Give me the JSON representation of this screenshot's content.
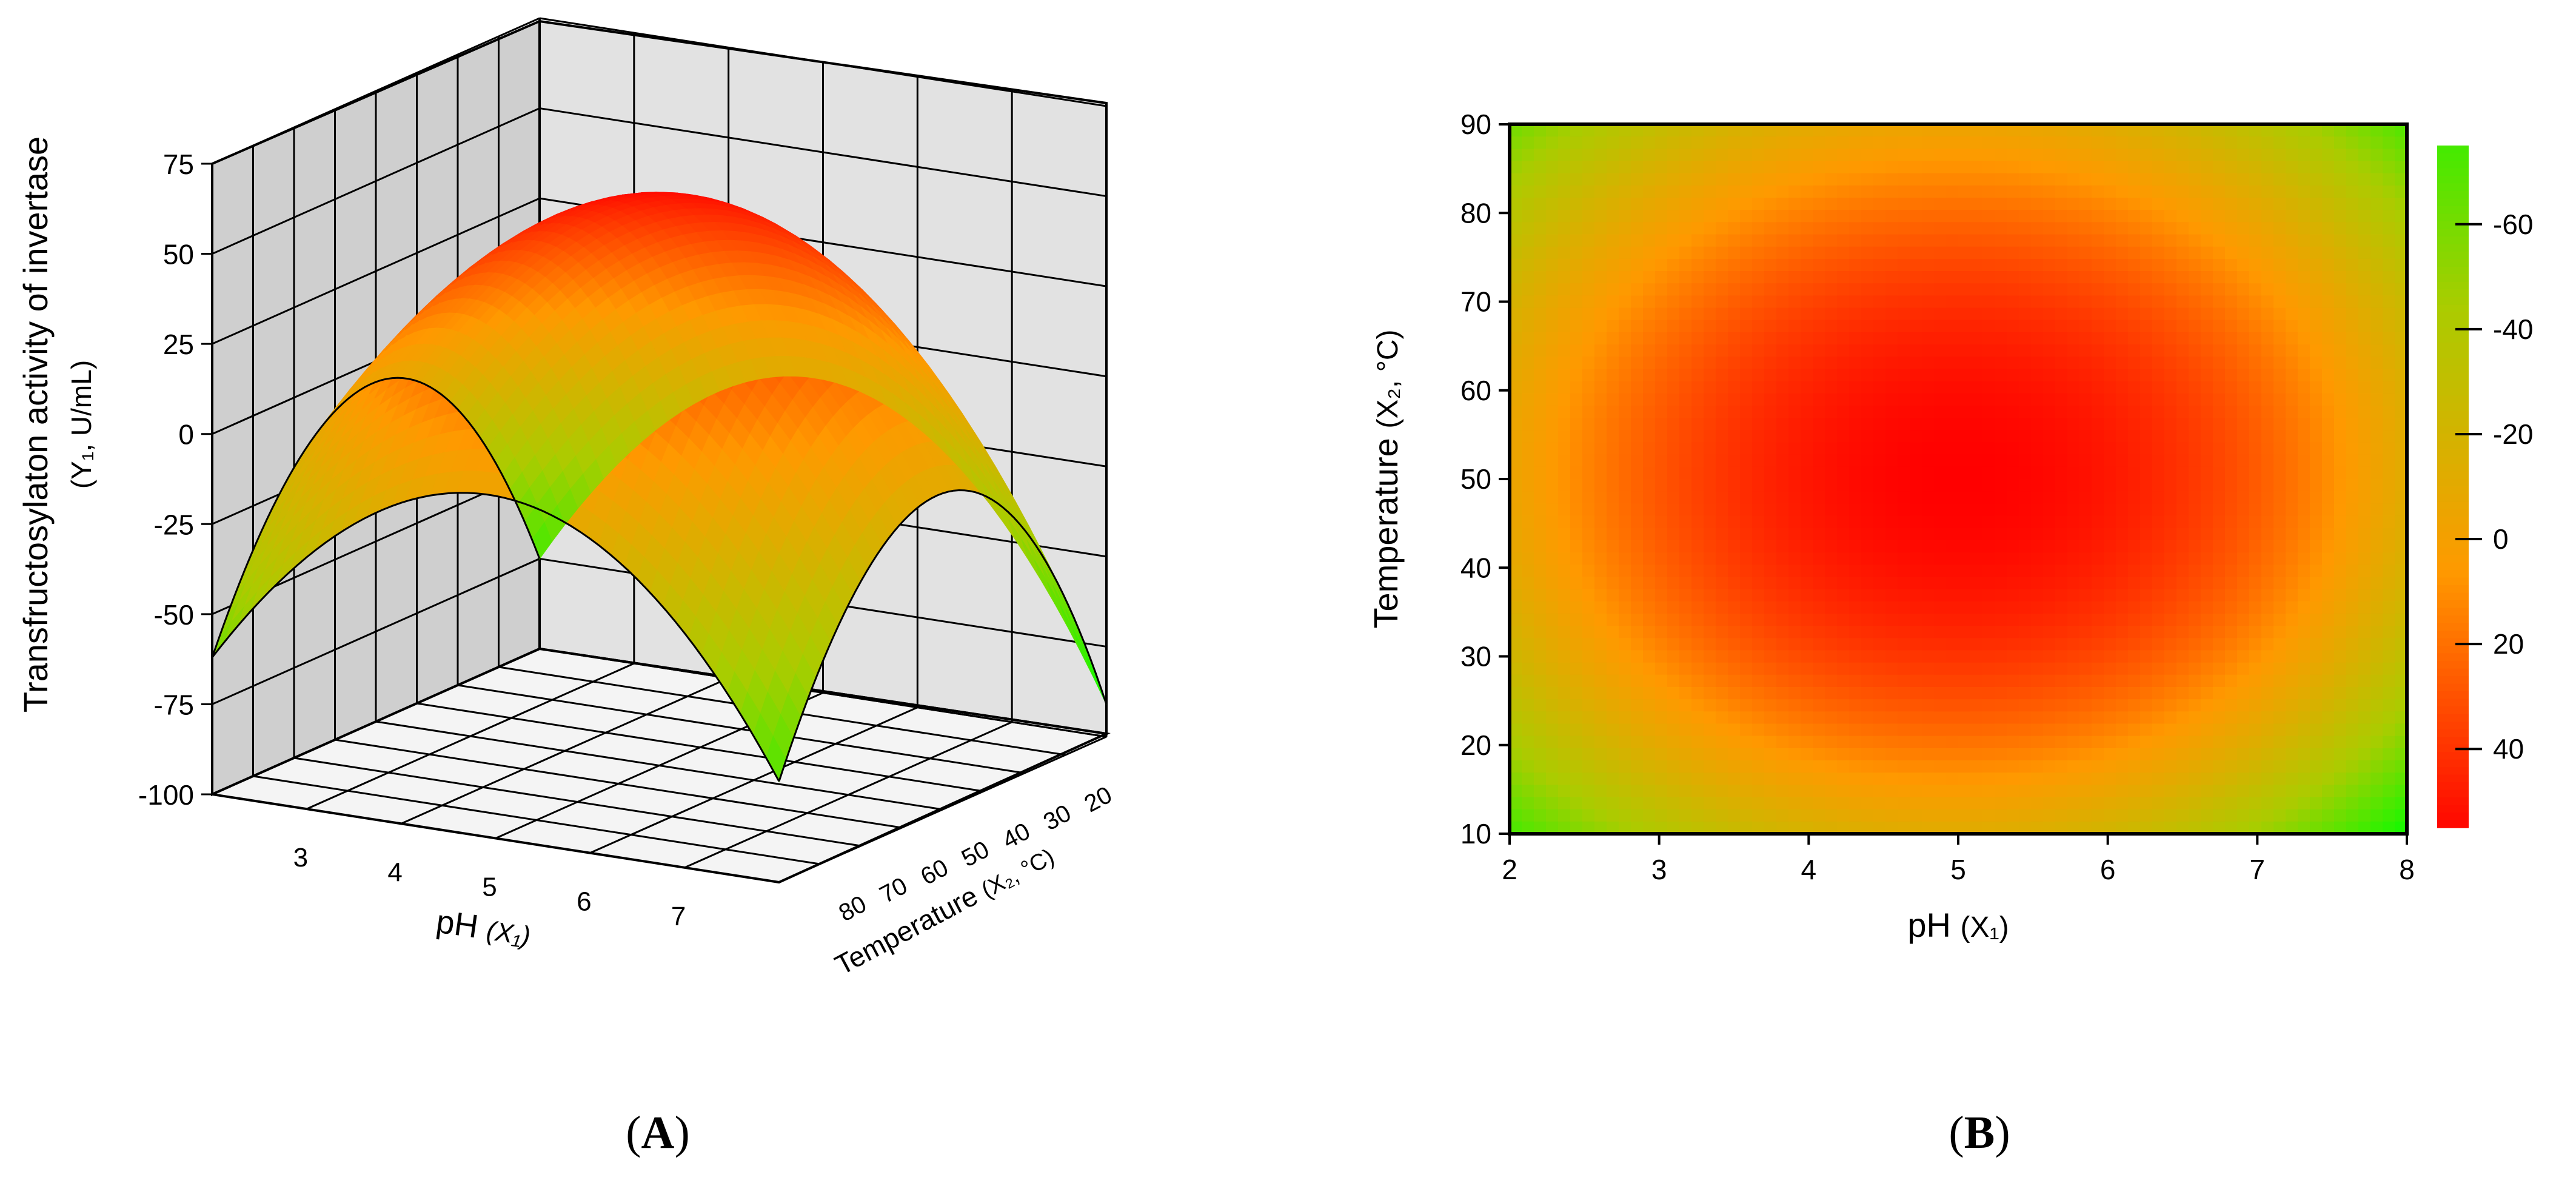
{
  "chart_data": [
    {
      "panel": "(A)",
      "panel_letter": "A",
      "type": "surface",
      "x_axis": {
        "label": "pH",
        "label_sub": "(X₁)",
        "range": [
          2,
          8
        ],
        "ticks": [
          3,
          4,
          5,
          6,
          7
        ]
      },
      "y_axis": {
        "label": "Temperature",
        "label_sub": "(X₂, °C)",
        "range": [
          10,
          90
        ],
        "ticks": [
          20,
          30,
          40,
          50,
          60,
          70,
          80
        ]
      },
      "z_axis": {
        "label_line1": "Transfructosylaton activity of invertase",
        "label_line2": "(Y₁, U/mL)",
        "range": [
          -100,
          75
        ],
        "ticks": [
          -100,
          -75,
          -50,
          -25,
          0,
          25,
          50,
          75
        ]
      },
      "surface_model": {
        "peak_ph": 5.0,
        "peak_temperature": 50,
        "peak_value": 57,
        "corner_values": [
          -75,
          -91,
          -72,
          -62
        ]
      },
      "grid": true,
      "colormap": [
        "#00ff00",
        "#aacc00",
        "#ff9900",
        "#ff0000"
      ]
    },
    {
      "panel": "(B)",
      "panel_letter": "B",
      "type": "heatmap",
      "x_axis": {
        "label": "pH",
        "label_sub": "(X₁)",
        "range": [
          2,
          8
        ],
        "ticks": [
          2,
          3,
          4,
          5,
          6,
          7,
          8
        ]
      },
      "y_axis": {
        "label": "Temperature",
        "label_sub": "(X₂, °C)",
        "range": [
          10,
          90
        ],
        "ticks": [
          10,
          20,
          30,
          40,
          50,
          60,
          70,
          80,
          90
        ]
      },
      "colorbar": {
        "range": [
          -75,
          55
        ],
        "ticks": [
          -60,
          -40,
          -20,
          0,
          20,
          40
        ],
        "tick_labels": [
          "-60",
          "-40",
          "-20",
          "0",
          "20",
          "40"
        ],
        "orientation": "negative values at top (green), positive at bottom (red)"
      },
      "surface_model": {
        "peak_ph": 5.0,
        "peak_temperature": 50,
        "peak_value": 57,
        "corner_values": [
          -75,
          -91,
          -72,
          -62
        ]
      },
      "colormap": [
        "#00ff00",
        "#aacc00",
        "#ff9900",
        "#ff0000"
      ]
    }
  ]
}
